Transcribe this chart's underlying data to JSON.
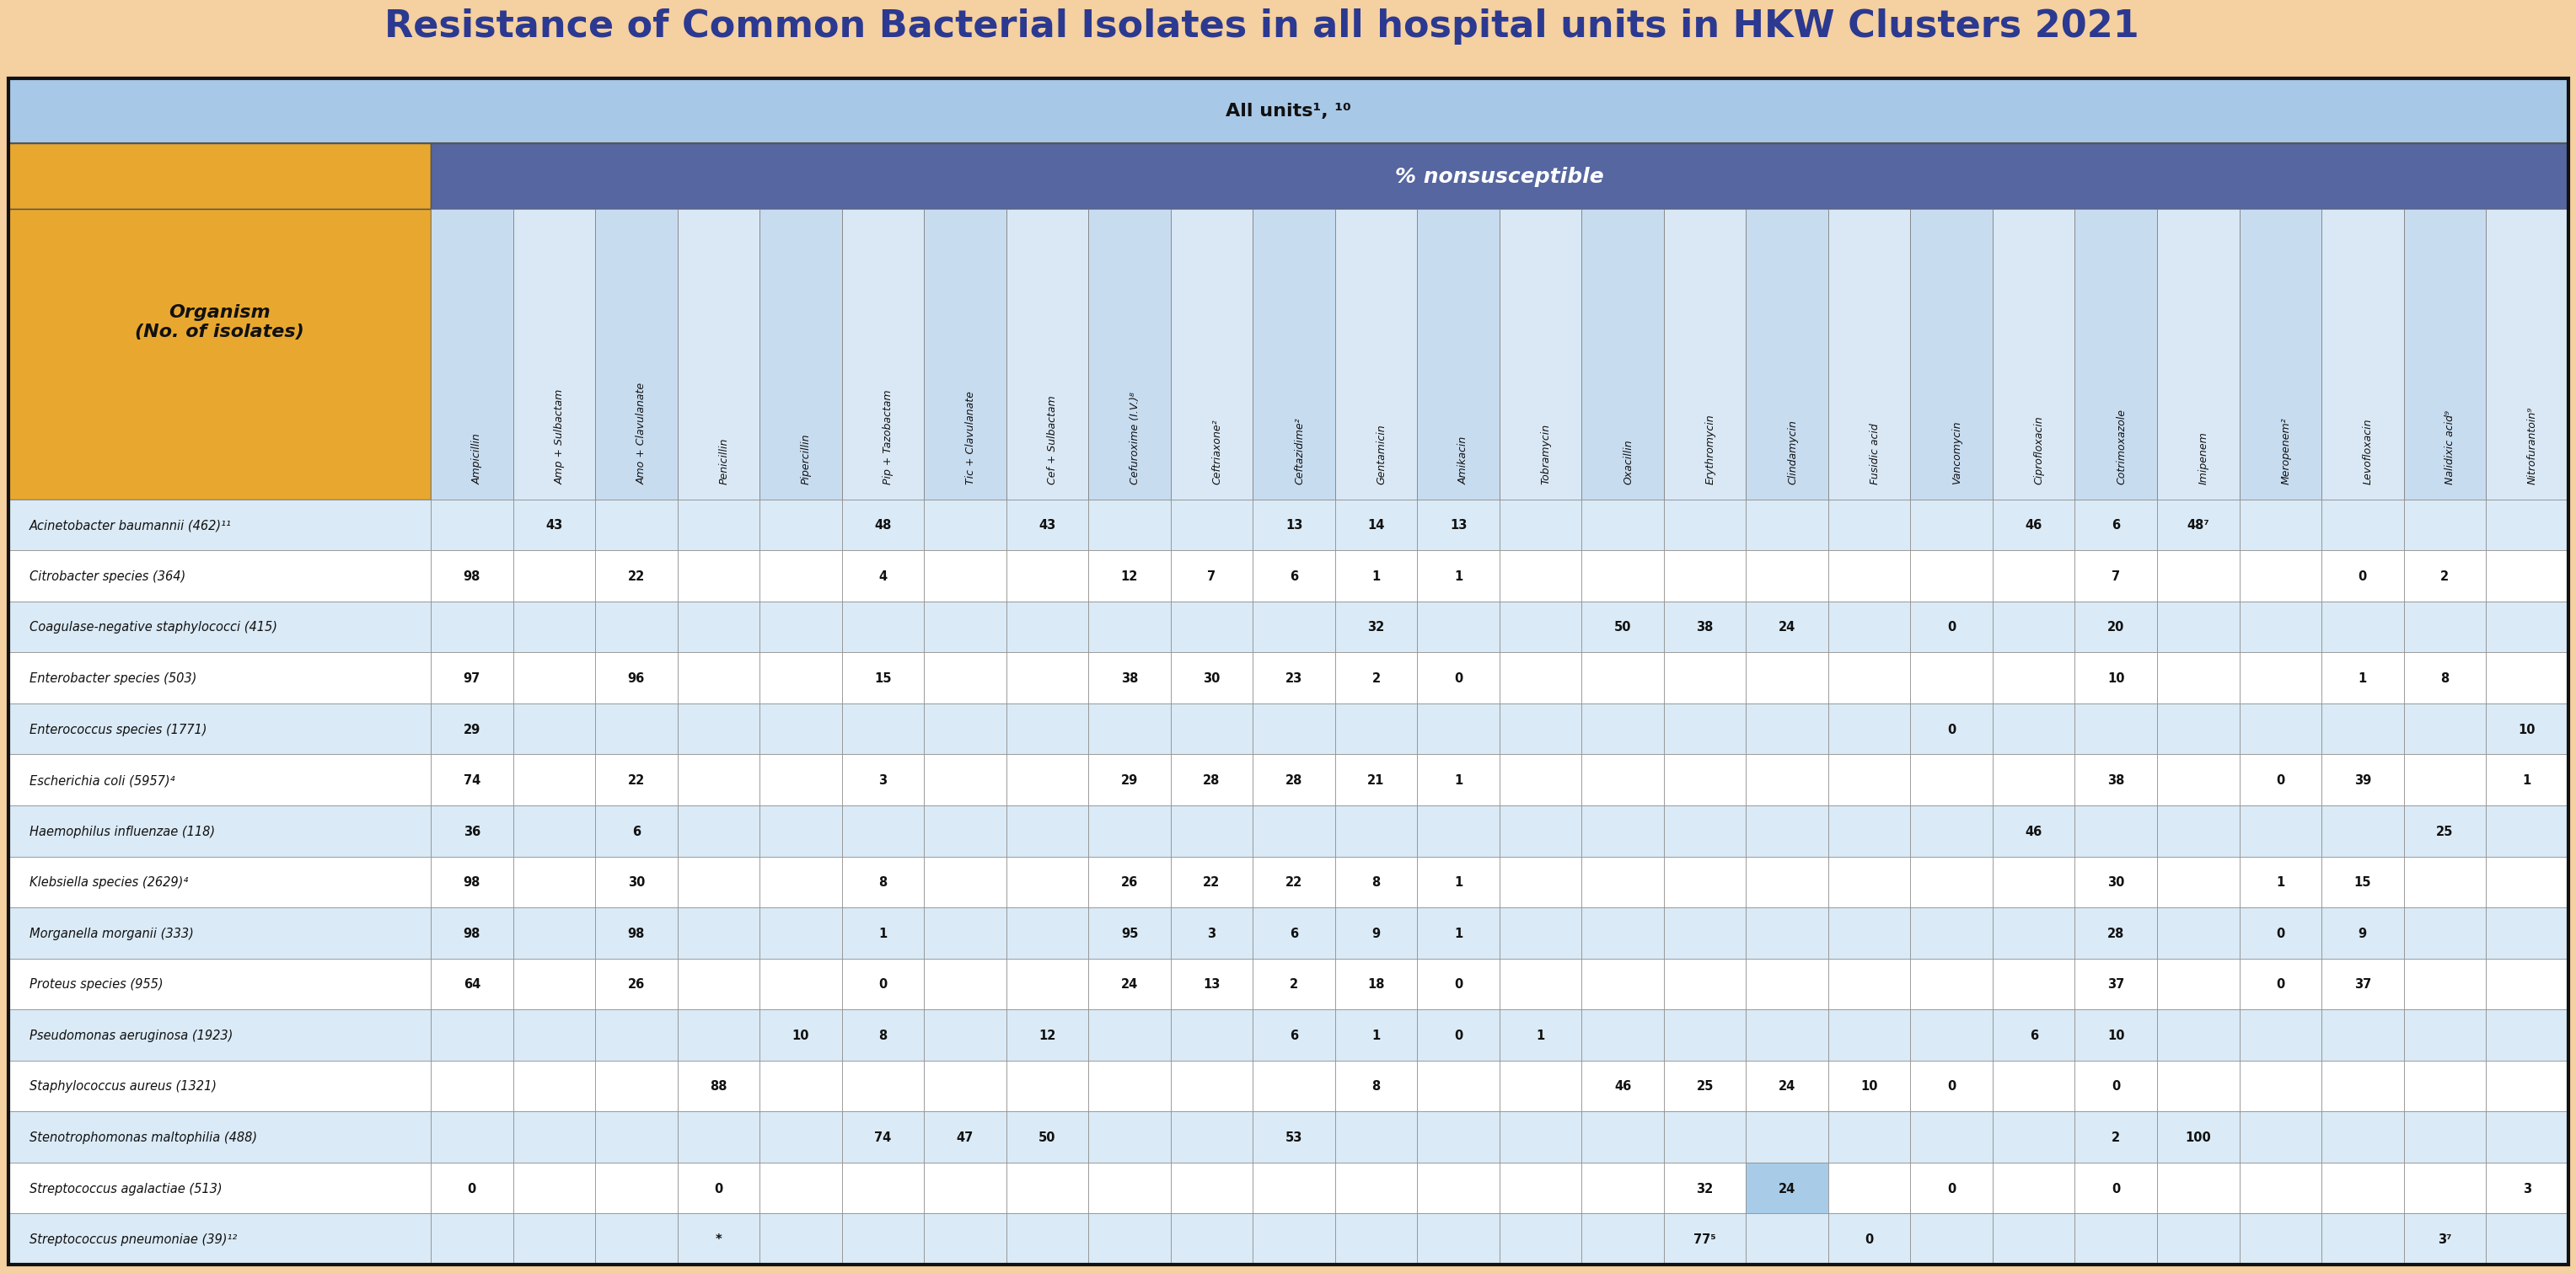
{
  "title": "Resistance of Common Bacterial Isolates in all hospital units in HKW Clusters 2021",
  "title_color": "#2B3990",
  "bg_color": "#F5D0A0",
  "table_outer_border": "#1a1a1a",
  "header1_bg": "#A8C8E8",
  "header1_text": "All units¹, ¹⁰",
  "header2_bg": "#5566A0",
  "header2_text": "% nonsusceptible",
  "org_header_bg": "#E8A830",
  "org_header_text": "Organism\n(No. of isolates)",
  "col_headers": [
    "Ampicillin",
    "Amp + Sulbactam",
    "Amo + Clavulanate",
    "Penicillin",
    "Pipercillin",
    "Pip + Tazobactam",
    "Tic + Clavulanate",
    "Cef + Sulbactam",
    "Cefuroxime (I.V.)⁸",
    "Ceftriaxone²",
    "Ceftazidime²",
    "Gentamicin",
    "Amikacin",
    "Tobramycin",
    "Oxacillin",
    "Erythromycin",
    "Clindamycin",
    "Fusidic acid",
    "Vancomycin",
    "Ciprofloxacin",
    "Cotrimoxazole",
    "Imipenem",
    "Meropenem²",
    "Levofloxacin",
    "Nalidixic acid⁹",
    "Nitrofurantoin⁹"
  ],
  "organisms": [
    "Acinetobacter baumannii (462)¹¹",
    "Citrobacter species (364)",
    "Coagulase-negative staphylococci (415)",
    "Enterobacter species (503)",
    "Enterococcus species (1771)",
    "Escherichia coli (5957)⁴",
    "Haemophilus influenzae (118)",
    "Klebsiella species (2629)⁴",
    "Morganella morganii (333)",
    "Proteus species (955)",
    "Pseudomonas aeruginosa (1923)",
    "Staphylococcus aureus (1321)",
    "Stenotrophomonas maltophilia (488)",
    "Streptococcus agalactiae (513)",
    "Streptococcus pneumoniae (39)¹²"
  ],
  "data": [
    [
      "",
      "43",
      "",
      "",
      "",
      "48",
      "",
      "43",
      "",
      "",
      "13",
      "14",
      "13",
      "",
      "",
      "",
      "",
      "",
      "",
      "46",
      "6",
      "48⁷",
      "",
      "",
      "",
      ""
    ],
    [
      "98",
      "",
      "22",
      "",
      "",
      "4",
      "",
      "",
      "12",
      "7",
      "6",
      "1",
      "1",
      "",
      "",
      "",
      "",
      "",
      "",
      "",
      "7",
      "",
      "",
      "0",
      "2",
      ""
    ],
    [
      "",
      "",
      "",
      "",
      "",
      "",
      "",
      "",
      "",
      "",
      "",
      "32",
      "",
      "",
      "50",
      "38",
      "24",
      "",
      "0",
      "",
      "20",
      "",
      "",
      "",
      "",
      ""
    ],
    [
      "97",
      "",
      "96",
      "",
      "",
      "15",
      "",
      "",
      "38",
      "30",
      "23",
      "2",
      "0",
      "",
      "",
      "",
      "",
      "",
      "",
      "",
      "10",
      "",
      "",
      "1",
      "8",
      ""
    ],
    [
      "29",
      "",
      "",
      "",
      "",
      "",
      "",
      "",
      "",
      "",
      "",
      "",
      "",
      "",
      "",
      "",
      "",
      "",
      "0",
      "",
      "",
      "",
      "",
      "",
      "",
      "10"
    ],
    [
      "74",
      "",
      "22",
      "",
      "",
      "3",
      "",
      "",
      "29",
      "28",
      "28",
      "21",
      "1",
      "",
      "",
      "",
      "",
      "",
      "",
      "",
      "38",
      "",
      "0",
      "39",
      "",
      "1"
    ],
    [
      "36",
      "",
      "6",
      "",
      "",
      "",
      "",
      "",
      "",
      "",
      "",
      "",
      "",
      "",
      "",
      "",
      "",
      "",
      "",
      "46",
      "",
      "",
      "",
      "",
      "25",
      ""
    ],
    [
      "98",
      "",
      "30",
      "",
      "",
      "8",
      "",
      "",
      "26",
      "22",
      "22",
      "8",
      "1",
      "",
      "",
      "",
      "",
      "",
      "",
      "",
      "30",
      "",
      "1",
      "15",
      "",
      ""
    ],
    [
      "98",
      "",
      "98",
      "",
      "",
      "1",
      "",
      "",
      "95",
      "3",
      "6",
      "9",
      "1",
      "",
      "",
      "",
      "",
      "",
      "",
      "",
      "28",
      "",
      "0",
      "9",
      "",
      ""
    ],
    [
      "64",
      "",
      "26",
      "",
      "",
      "0",
      "",
      "",
      "24",
      "13",
      "2",
      "18",
      "0",
      "",
      "",
      "",
      "",
      "",
      "",
      "",
      "37",
      "",
      "0",
      "37",
      "",
      ""
    ],
    [
      "",
      "",
      "",
      "",
      "10",
      "8",
      "",
      "12",
      "",
      "",
      "6",
      "1",
      "0",
      "1",
      "",
      "",
      "",
      "",
      "",
      "6",
      "10",
      "",
      "",
      "",
      "",
      ""
    ],
    [
      "",
      "",
      "",
      "88",
      "",
      "",
      "",
      "",
      "",
      "",
      "",
      "8",
      "",
      "",
      "46",
      "25",
      "24",
      "10",
      "0",
      "",
      "0",
      "",
      "",
      "",
      "",
      ""
    ],
    [
      "",
      "",
      "",
      "",
      "",
      "74",
      "47",
      "50",
      "",
      "",
      "53",
      "",
      "",
      "",
      "",
      "",
      "",
      "",
      "",
      "",
      "2",
      "100",
      "",
      "",
      "",
      ""
    ],
    [
      "0",
      "",
      "",
      "0",
      "",
      "",
      "",
      "",
      "",
      "",
      "",
      "",
      "",
      "",
      "",
      "32",
      "24",
      "",
      "0",
      "",
      "0",
      "",
      "",
      "",
      "",
      "3"
    ],
    [
      "",
      "",
      "",
      "*",
      "",
      "",
      "",
      "",
      "",
      "",
      "",
      "",
      "",
      "",
      "",
      "77⁵",
      "",
      "0",
      "",
      "",
      "",
      "",
      "",
      "",
      "3⁷",
      ""
    ]
  ],
  "special_cells": {
    "13_15": {
      "bg": "#B8D8F0"
    },
    "13_16": {
      "bg": "#B8D8F0"
    }
  },
  "row_colors_even": "#DAEAF6",
  "row_colors_odd": "#FFFFFF",
  "col_stripe_colors": [
    "#DAEAF6",
    "#EEF5FB"
  ]
}
